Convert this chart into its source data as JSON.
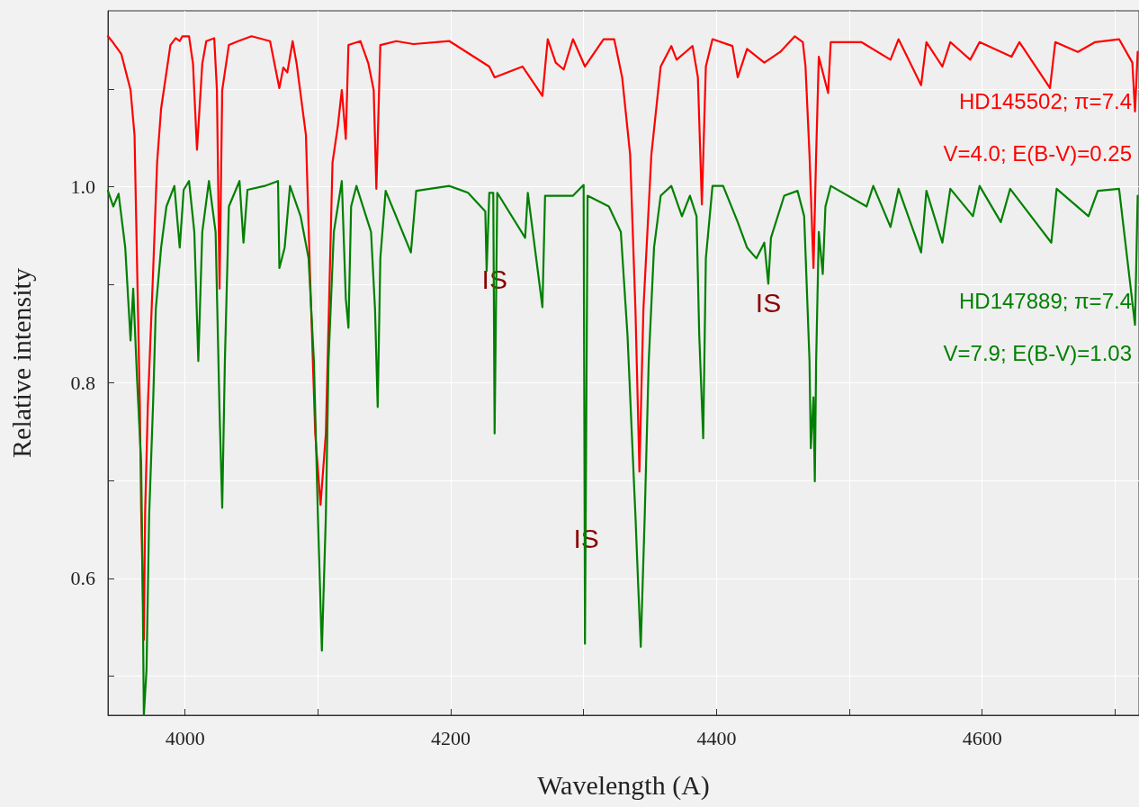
{
  "chart_data": {
    "type": "line",
    "xlabel": "Wavelength (A)",
    "ylabel": "Relative intensity",
    "xlim": [
      3942,
      4718
    ],
    "ylim": [
      0.46,
      1.18
    ],
    "xticks": [
      4000,
      {
        "value": 4100,
        "label": null
      },
      4200,
      {
        "value": 4300,
        "label": null
      },
      4400,
      {
        "value": 4500,
        "label": null
      },
      4600,
      {
        "value": 4700,
        "label": null
      }
    ],
    "yticks": [
      {
        "value": 0.5,
        "label": null
      },
      0.6,
      {
        "value": 0.7,
        "label": null
      },
      0.8,
      {
        "value": 0.9,
        "label": null
      },
      {
        "value": 1.0,
        "label": "1.0"
      },
      {
        "value": 1.1,
        "label": null
      }
    ],
    "grid": true,
    "legend": false,
    "marker": "none",
    "line_style": "solid",
    "series": [
      {
        "name": "HD145502; π=7.4\nV=4.0; E(B-V)=0.25",
        "color": "#ff0000",
        "x": [
          3942,
          3945,
          3952,
          3959,
          3962,
          3964,
          3966,
          3967,
          3969,
          3970,
          3972,
          3976,
          3979,
          3982,
          3986,
          3989,
          3993,
          3996,
          3998,
          4003,
          4006,
          4009,
          4013,
          4016,
          4022,
          4024,
          4026,
          4028,
          4033,
          4040,
          4050,
          4064,
          4071,
          4074,
          4077,
          4081,
          4084,
          4091,
          4094,
          4098,
          4102,
          4106,
          4109,
          4111,
          4115,
          4118,
          4121,
          4123,
          4132,
          4138,
          4142,
          4144,
          4147,
          4159,
          4172,
          4199,
          4229,
          4233,
          4254,
          4269,
          4273,
          4279,
          4285,
          4292,
          4301,
          4315,
          4323,
          4329,
          4335,
          4339,
          4342,
          4345,
          4351,
          4358,
          4366,
          4370,
          4382,
          4386,
          4389,
          4392,
          4397,
          4412,
          4416,
          4423,
          4436,
          4448,
          4459,
          4465,
          4467,
          4470,
          4473,
          4475,
          4477,
          4484,
          4486,
          4509,
          4531,
          4537,
          4554,
          4558,
          4570,
          4576,
          4591,
          4598,
          4622,
          4628,
          4651,
          4655,
          4672,
          4685,
          4703,
          4713,
          4715,
          4717
        ],
        "values": [
          1.154,
          1.149,
          1.136,
          1.099,
          1.053,
          0.914,
          0.776,
          0.669,
          0.537,
          0.669,
          0.776,
          0.914,
          1.025,
          1.08,
          1.117,
          1.145,
          1.152,
          1.149,
          1.154,
          1.154,
          1.126,
          1.038,
          1.126,
          1.149,
          1.152,
          1.099,
          0.896,
          1.099,
          1.145,
          1.149,
          1.154,
          1.149,
          1.101,
          1.122,
          1.117,
          1.149,
          1.126,
          1.053,
          0.914,
          0.748,
          0.675,
          0.748,
          0.914,
          1.025,
          1.062,
          1.099,
          1.049,
          1.145,
          1.149,
          1.126,
          1.099,
          0.998,
          1.145,
          1.149,
          1.146,
          1.149,
          1.123,
          1.112,
          1.123,
          1.093,
          1.151,
          1.127,
          1.12,
          1.151,
          1.123,
          1.151,
          1.151,
          1.112,
          1.033,
          0.875,
          0.709,
          0.875,
          1.033,
          1.123,
          1.144,
          1.13,
          1.144,
          1.112,
          0.982,
          1.123,
          1.151,
          1.144,
          1.112,
          1.141,
          1.127,
          1.138,
          1.154,
          1.148,
          1.123,
          1.033,
          0.917,
          1.033,
          1.133,
          1.096,
          1.148,
          1.148,
          1.13,
          1.151,
          1.104,
          1.148,
          1.123,
          1.148,
          1.13,
          1.148,
          1.133,
          1.148,
          1.101,
          1.148,
          1.138,
          1.148,
          1.151,
          1.127,
          1.077,
          1.138
        ]
      },
      {
        "name": "HD147889; π=7.4\nV=7.9; E(B-V)=1.03",
        "color": "#008000",
        "x": [
          3942,
          3946,
          3950,
          3955,
          3959,
          3961,
          3964,
          3967,
          3968,
          3969,
          3971,
          3973,
          3976,
          3978,
          3982,
          3986,
          3992,
          3996,
          3999,
          4003,
          4007,
          4010,
          4013,
          4018,
          4023,
          4026,
          4028,
          4030,
          4033,
          4041,
          4044,
          4047,
          4060,
          4070,
          4071,
          4075,
          4079,
          4087,
          4093,
          4097,
          4100,
          4103,
          4106,
          4108,
          4112,
          4118,
          4121,
          4123,
          4125,
          4129,
          4140,
          4143,
          4145,
          4147,
          4151,
          4170,
          4174,
          4199,
          4213,
          4226,
          4227,
          4229,
          4232,
          4233,
          4235,
          4256,
          4258,
          4269,
          4271,
          4292,
          4300,
          4301,
          4303,
          4319,
          4328,
          4333,
          4339,
          4341,
          4343,
          4346,
          4349,
          4353,
          4358,
          4366,
          4374,
          4380,
          4385,
          4387,
          4390,
          4392,
          4397,
          4405,
          4416,
          4423,
          4430,
          4436,
          4439,
          4441,
          4451,
          4461,
          4466,
          4470,
          4471,
          4473,
          4474,
          4475,
          4477,
          4480,
          4482,
          4486,
          4513,
          4518,
          4531,
          4537,
          4554,
          4558,
          4570,
          4576,
          4593,
          4598,
          4614,
          4621,
          4652,
          4656,
          4680,
          4687,
          4703,
          4715,
          4717
        ],
        "values": [
          0.996,
          0.98,
          0.993,
          0.938,
          0.843,
          0.896,
          0.801,
          0.717,
          0.611,
          0.46,
          0.506,
          0.664,
          0.78,
          0.875,
          0.938,
          0.98,
          1.001,
          0.938,
          0.997,
          1.006,
          0.954,
          0.822,
          0.954,
          1.006,
          0.954,
          0.77,
          0.672,
          0.822,
          0.98,
          1.006,
          0.943,
          0.997,
          1.001,
          1.006,
          0.917,
          0.938,
          1.001,
          0.97,
          0.927,
          0.822,
          0.664,
          0.526,
          0.664,
          0.822,
          0.954,
          1.006,
          0.886,
          0.856,
          0.98,
          1.001,
          0.954,
          0.875,
          0.775,
          0.927,
          0.996,
          0.933,
          0.996,
          1.001,
          0.994,
          0.975,
          0.914,
          0.994,
          0.994,
          0.748,
          0.994,
          0.948,
          0.994,
          0.877,
          0.991,
          0.991,
          1.002,
          0.533,
          0.991,
          0.98,
          0.954,
          0.849,
          0.664,
          0.595,
          0.53,
          0.664,
          0.822,
          0.938,
          0.991,
          1.001,
          0.97,
          0.991,
          0.97,
          0.849,
          0.743,
          0.927,
          1.001,
          1.001,
          0.964,
          0.938,
          0.927,
          0.943,
          0.901,
          0.948,
          0.991,
          0.996,
          0.97,
          0.822,
          0.733,
          0.785,
          0.699,
          0.822,
          0.954,
          0.911,
          0.98,
          1.001,
          0.98,
          1.001,
          0.959,
          0.998,
          0.933,
          0.996,
          0.943,
          0.998,
          0.97,
          1.001,
          0.964,
          0.998,
          0.943,
          0.998,
          0.97,
          0.996,
          0.998,
          0.859,
          0.991
        ]
      }
    ],
    "annotations": [
      {
        "text": "IS",
        "x": 4233,
        "y": 0.925
      },
      {
        "text": "IS",
        "x": 4302,
        "y": 0.66
      },
      {
        "text": "IS",
        "x": 4439,
        "y": 0.901
      }
    ]
  }
}
